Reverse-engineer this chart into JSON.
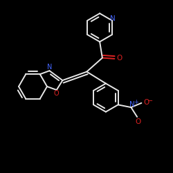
{
  "background_color": "#000000",
  "bond_color": "#e8e8e8",
  "nitrogen_color": "#4466ff",
  "oxygen_color": "#dd2222",
  "fig_width": 2.5,
  "fig_height": 2.5,
  "dpi": 100,
  "xlim": [
    0,
    10
  ],
  "ylim": [
    0,
    10
  ]
}
